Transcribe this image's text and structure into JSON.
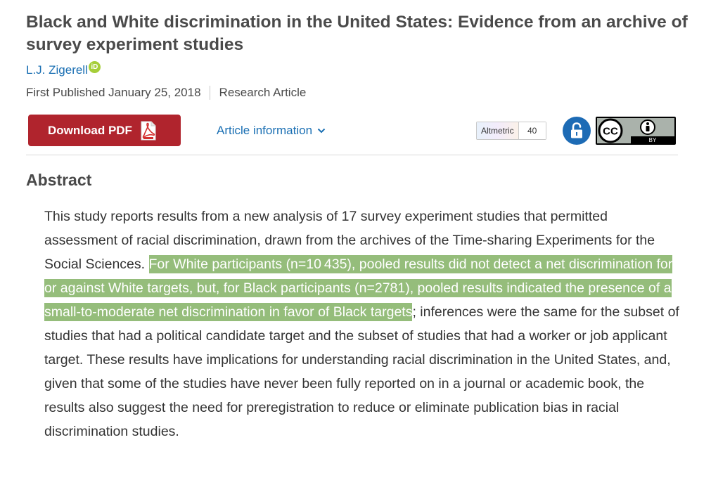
{
  "article": {
    "title": "Black and White discrimination in the United States: Evidence from an archive of survey experiment studies",
    "author": "L.J. Zigerell",
    "orcid_icon_text": "iD",
    "published": "First Published January 25, 2018",
    "article_type": "Research Article"
  },
  "toolbar": {
    "download_pdf": "Download PDF",
    "article_information": "Article information",
    "altmetric_label": "Altmetric",
    "altmetric_score": "40",
    "license_top": "CC",
    "license_by": "BY"
  },
  "abstract": {
    "heading": "Abstract",
    "text_before": "This study reports results from a new analysis of 17 survey experiment studies that permitted assessment of racial discrimination, drawn from the archives of the Time-sharing Experiments for the Social Sciences. ",
    "text_highlighted": "For White participants (n=10 435), pooled results did not detect a net discrimination for or against White targets, but, for Black participants (n=2781), pooled results indicated the presence of a small-to-moderate net discrimination in favor of Black targets",
    "text_after": "; inferences were the same for the subset of studies that had a political candidate target and the subset of studies that had a worker or job applicant target. These results have implications for understanding racial discrimination in the United States, and, given that some of the studies have never been fully reported on in a journal or academic book, the results also suggest the need for preregistration to reduce or eliminate publication bias in racial discrimination studies."
  },
  "colors": {
    "pdf_button": "#b0242d",
    "link": "#1a6fb3",
    "highlight": "#95bd7b",
    "open_access": "#1d6bb5",
    "orcid": "#a6ce39"
  }
}
